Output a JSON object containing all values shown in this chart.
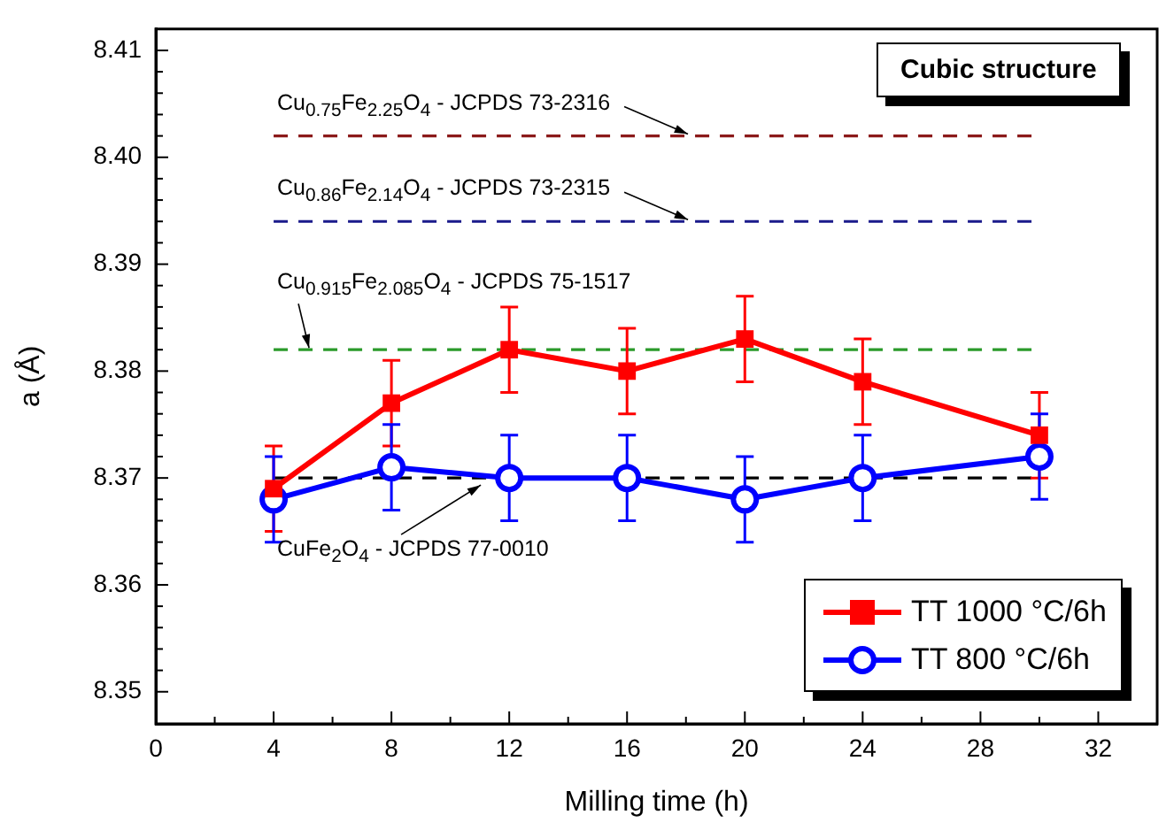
{
  "chart_data": {
    "type": "line",
    "xlabel": "Milling time (h)",
    "ylabel": "a (Å)",
    "xlim": [
      0,
      34
    ],
    "xticks": [
      0,
      4,
      8,
      12,
      16,
      20,
      24,
      28,
      32
    ],
    "ylim": [
      8.347,
      8.412
    ],
    "yticks": [
      8.35,
      8.36,
      8.37,
      8.38,
      8.39,
      {
        "value": 8.4,
        "label": "8.40"
      },
      8.41
    ],
    "x": [
      4,
      8,
      12,
      16,
      20,
      24,
      30
    ],
    "series": [
      {
        "name": "TT 1000 °C/6h",
        "color": "#ff0000",
        "marker": "square",
        "values": [
          8.369,
          8.377,
          8.382,
          8.38,
          8.383,
          8.379,
          8.374
        ],
        "errors": [
          0.004,
          0.004,
          0.004,
          0.004,
          0.004,
          0.004,
          0.004
        ]
      },
      {
        "name": "TT 800 °C/6h",
        "color": "#0000ff",
        "marker": "circle",
        "values": [
          8.368,
          8.371,
          8.37,
          8.37,
          8.368,
          8.37,
          8.372
        ],
        "errors": [
          0.004,
          0.004,
          0.004,
          0.004,
          0.004,
          0.004,
          0.004
        ]
      }
    ],
    "ref_lines": [
      {
        "axis": "y",
        "value": 8.402,
        "label": "Cu$_{0.75}$Fe$_{2.25}$O$_{4}$ - JCPDS 73-2316",
        "color": "#8b1a1a",
        "line_style": "dashed"
      },
      {
        "axis": "y",
        "value": 8.394,
        "label": "Cu$_{0.86}$Fe$_{2.14}$O$_{4}$ - JCPDS 73-2315",
        "color": "#1a1a8b",
        "line_style": "dashed"
      },
      {
        "axis": "y",
        "value": 8.382,
        "label": "Cu$_{0.915}$Fe$_{2.085}$O$_{4}$ - JCPDS 75-1517",
        "color": "#2a9a2a",
        "line_style": "dashed"
      },
      {
        "axis": "y",
        "value": 8.37,
        "label": "CuFe$_{2}$O$_{4}$ - JCPDS 77-0010",
        "color": "#000000",
        "line_style": "dashed"
      }
    ],
    "annotations": [
      "Cubic structure"
    ],
    "grid": false,
    "legend": "bottom right",
    "line_style": "solid"
  }
}
